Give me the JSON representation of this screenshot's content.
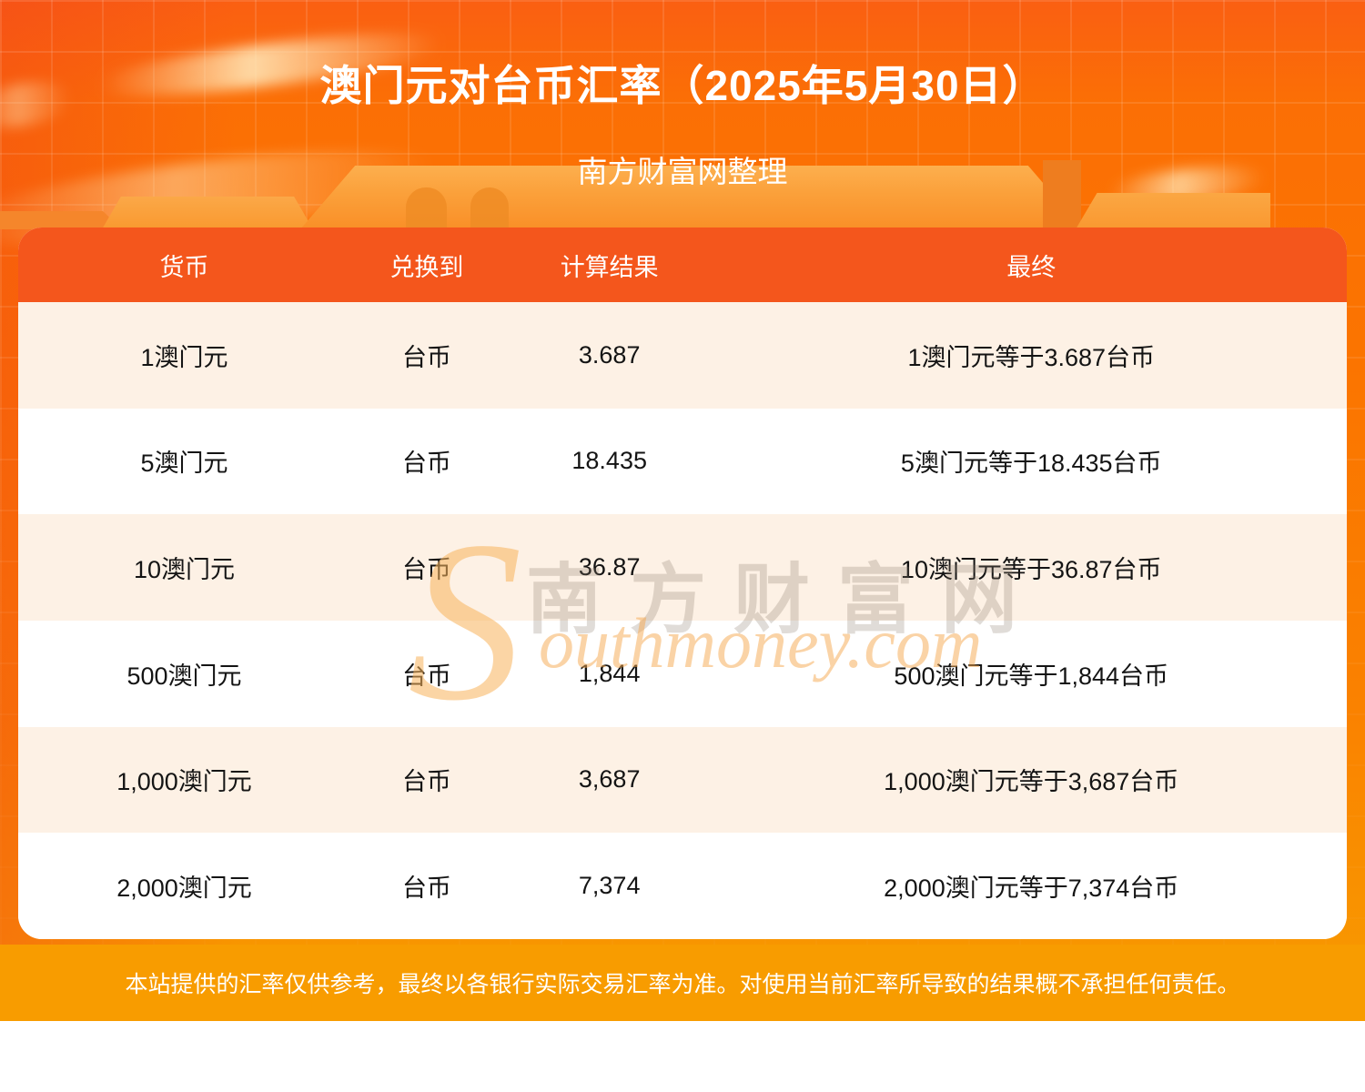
{
  "page": {
    "title": "澳门元对台币汇率（2025年5月30日）",
    "subtitle": "南方财富网整理",
    "disclaimer": "本站提供的汇率仅供参考，最终以各银行实际交易汇率为准。对使用当前汇率所导致的结果概不承担任何责任。"
  },
  "watermark": {
    "s": "S",
    "cn": "南方财富网",
    "en": "outhmoney.com"
  },
  "colors": {
    "background_top": "#FA5F12",
    "background_main": "#FB7400",
    "background_bottom": "#F89C00",
    "header_bg": "#F4561C",
    "row_alt_bg": "#FDF1E5",
    "row_bg": "#FFFFFF",
    "text_dark": "#141414",
    "text_light": "#FFFFFF"
  },
  "table": {
    "headers": [
      "货币",
      "兑换到",
      "计算结果",
      "最终"
    ],
    "rows": [
      {
        "amount": "1澳门元",
        "to": "台币",
        "result": "3.687",
        "final": "1澳门元等于3.687台币"
      },
      {
        "amount": "5澳门元",
        "to": "台币",
        "result": "18.435",
        "final": "5澳门元等于18.435台币"
      },
      {
        "amount": "10澳门元",
        "to": "台币",
        "result": "36.87",
        "final": "10澳门元等于36.87台币"
      },
      {
        "amount": "500澳门元",
        "to": "台币",
        "result": "1,844",
        "final": "500澳门元等于1,844台币"
      },
      {
        "amount": "1,000澳门元",
        "to": "台币",
        "result": "3,687",
        "final": "1,000澳门元等于3,687台币"
      },
      {
        "amount": "2,000澳门元",
        "to": "台币",
        "result": "7,374",
        "final": "2,000澳门元等于7,374台币"
      }
    ]
  },
  "chart_data": {
    "type": "table",
    "title": "澳门元对台币汇率（2025年5月30日）",
    "source": "南方财富网整理",
    "date": "2025年5月30日",
    "base_currency": "澳门元",
    "quote_currency": "台币",
    "unit_rate": 3.687,
    "columns": [
      "货币",
      "兑换到",
      "计算结果",
      "最终"
    ],
    "rows": [
      [
        "1澳门元",
        "台币",
        "3.687",
        "1澳门元等于3.687台币"
      ],
      [
        "5澳门元",
        "台币",
        "18.435",
        "5澳门元等于18.435台币"
      ],
      [
        "10澳门元",
        "台币",
        "36.87",
        "10澳门元等于36.87台币"
      ],
      [
        "500澳门元",
        "台币",
        "1,844",
        "500澳门元等于1,844台币"
      ],
      [
        "1,000澳门元",
        "台币",
        "3,687",
        "1,000澳门元等于3,687台币"
      ],
      [
        "2,000澳门元",
        "台币",
        "7,374",
        "2,000澳门元等于7,374台币"
      ]
    ]
  }
}
